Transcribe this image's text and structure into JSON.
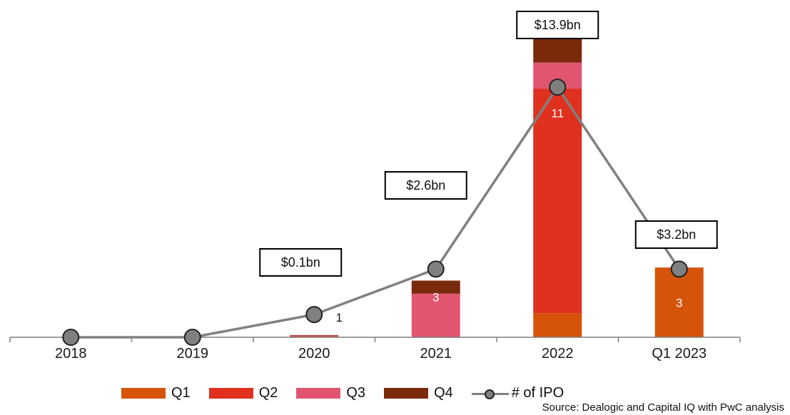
{
  "chart_data": {
    "type": "bar",
    "categories": [
      "2018",
      "2019",
      "2020",
      "2021",
      "2022",
      "Q1 2023"
    ],
    "stack_order": [
      "Q1",
      "Q2",
      "Q3",
      "Q4"
    ],
    "series": [
      {
        "name": "Q1",
        "color": "#d6540a",
        "values": [
          0,
          0,
          0.03,
          0,
          1.1,
          3.2
        ]
      },
      {
        "name": "Q2",
        "color": "#e0301e",
        "values": [
          0,
          0,
          0.03,
          0,
          10.3,
          0
        ]
      },
      {
        "name": "Q3",
        "color": "#e15571",
        "values": [
          0,
          0,
          0.02,
          2.0,
          1.2,
          0
        ]
      },
      {
        "name": "Q4",
        "color": "#7a2a0b",
        "values": [
          0,
          0,
          0.02,
          0.6,
          1.3,
          0
        ]
      }
    ],
    "line_series": {
      "name": "# of IPO",
      "color": "#808080",
      "values": [
        0,
        0,
        1,
        3,
        11,
        3
      ],
      "labels": [
        "",
        "",
        "1",
        "3",
        "11",
        "3"
      ]
    },
    "value_labels": [
      "",
      "",
      "$0.1bn",
      "$2.6bn",
      "$13.9bn",
      "$3.2bn"
    ],
    "ylim": [
      0,
      14
    ],
    "line_ylim": [
      0,
      12.2
    ],
    "legend_position": "bottom",
    "grid": false
  },
  "source": "Source: Dealogic and Capital IQ with PwC analysis"
}
